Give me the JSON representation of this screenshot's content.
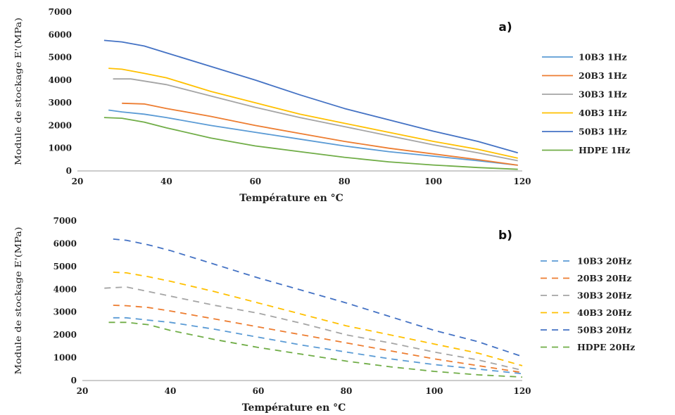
{
  "chart_data": [
    {
      "type": "line",
      "panel_label": "a)",
      "xlabel": "Température en °C",
      "ylabel": "Module de stockage E'(MPa)",
      "xlim": [
        20,
        120
      ],
      "ylim": [
        0,
        7000
      ],
      "xticks": [
        "20",
        "40",
        "60",
        "80",
        "100",
        "120"
      ],
      "yticks": [
        "0",
        "1000",
        "2000",
        "3000",
        "4000",
        "5000",
        "6000",
        "7000"
      ],
      "grid": false,
      "legend_position": "right",
      "line_style": "solid",
      "series": [
        {
          "name": "10B3 1Hz",
          "color": "#5b9bd5",
          "x": [
            27,
            30,
            35,
            40,
            50,
            60,
            70,
            80,
            90,
            100,
            110,
            119
          ],
          "y": [
            2680,
            2600,
            2500,
            2350,
            2000,
            1700,
            1400,
            1100,
            850,
            650,
            450,
            250
          ]
        },
        {
          "name": "20B3 1Hz",
          "color": "#ed7d31",
          "x": [
            30,
            35,
            40,
            50,
            60,
            70,
            80,
            90,
            100,
            110,
            119
          ],
          "y": [
            2980,
            2950,
            2750,
            2400,
            2000,
            1650,
            1300,
            1000,
            750,
            500,
            250
          ]
        },
        {
          "name": "30B3 1Hz",
          "color": "#a5a5a5",
          "x": [
            28,
            32,
            40,
            50,
            60,
            70,
            80,
            90,
            100,
            110,
            119
          ],
          "y": [
            4050,
            4050,
            3800,
            3300,
            2800,
            2350,
            1950,
            1550,
            1150,
            800,
            450
          ]
        },
        {
          "name": "40B3 1Hz",
          "color": "#ffc000",
          "x": [
            27,
            30,
            35,
            40,
            50,
            60,
            70,
            80,
            90,
            100,
            110,
            119
          ],
          "y": [
            4520,
            4480,
            4300,
            4100,
            3500,
            3000,
            2500,
            2100,
            1700,
            1300,
            950,
            560
          ]
        },
        {
          "name": "50B3 1Hz",
          "color": "#4472c4",
          "x": [
            26,
            30,
            35,
            40,
            50,
            60,
            70,
            80,
            90,
            100,
            110,
            119
          ],
          "y": [
            5750,
            5680,
            5500,
            5200,
            4600,
            4000,
            3350,
            2750,
            2250,
            1750,
            1300,
            800
          ]
        },
        {
          "name": "HDPE 1Hz",
          "color": "#70ad47",
          "x": [
            26,
            30,
            35,
            40,
            50,
            60,
            70,
            80,
            90,
            100,
            110,
            119
          ],
          "y": [
            2350,
            2320,
            2150,
            1900,
            1450,
            1100,
            850,
            600,
            400,
            260,
            150,
            70
          ]
        }
      ]
    },
    {
      "type": "line",
      "panel_label": "b)",
      "xlabel": "Température en °C",
      "ylabel": "Module de stockage E'(MPa)",
      "xlim": [
        20,
        120
      ],
      "ylim": [
        0,
        7000
      ],
      "xticks": [
        "20",
        "40",
        "60",
        "80",
        "100",
        "120"
      ],
      "yticks": [
        "0",
        "1000",
        "2000",
        "3000",
        "4000",
        "5000",
        "6000",
        "7000"
      ],
      "grid": false,
      "legend_position": "right",
      "line_style": "dashed",
      "series": [
        {
          "name": "10B3 20Hz",
          "color": "#5b9bd5",
          "x": [
            27,
            30,
            35,
            40,
            50,
            60,
            70,
            80,
            90,
            100,
            110,
            120
          ],
          "y": [
            2750,
            2750,
            2650,
            2550,
            2250,
            1900,
            1550,
            1250,
            950,
            700,
            500,
            300
          ]
        },
        {
          "name": "20B3 20Hz",
          "color": "#ed7d31",
          "x": [
            27,
            30,
            35,
            40,
            50,
            60,
            70,
            80,
            90,
            100,
            110,
            120
          ],
          "y": [
            3300,
            3280,
            3200,
            3050,
            2700,
            2350,
            2000,
            1650,
            1300,
            950,
            650,
            350
          ]
        },
        {
          "name": "30B3 20Hz",
          "color": "#a5a5a5",
          "x": [
            25,
            30,
            35,
            40,
            50,
            60,
            70,
            80,
            90,
            100,
            110,
            120
          ],
          "y": [
            4050,
            4100,
            3900,
            3700,
            3300,
            2950,
            2500,
            2000,
            1650,
            1250,
            900,
            450
          ]
        },
        {
          "name": "40B3 20Hz",
          "color": "#ffc000",
          "x": [
            27,
            30,
            35,
            40,
            50,
            60,
            70,
            80,
            90,
            100,
            110,
            120
          ],
          "y": [
            4750,
            4720,
            4550,
            4350,
            3900,
            3400,
            2900,
            2400,
            2000,
            1600,
            1200,
            650
          ]
        },
        {
          "name": "50B3 20Hz",
          "color": "#4472c4",
          "x": [
            27,
            30,
            35,
            40,
            50,
            60,
            70,
            80,
            90,
            100,
            110,
            120
          ],
          "y": [
            6200,
            6150,
            5950,
            5700,
            5100,
            4500,
            3950,
            3400,
            2800,
            2200,
            1700,
            1050
          ]
        },
        {
          "name": "HDPE 20Hz",
          "color": "#70ad47",
          "x": [
            26,
            30,
            35,
            40,
            50,
            60,
            70,
            80,
            90,
            100,
            110,
            120
          ],
          "y": [
            2550,
            2550,
            2450,
            2200,
            1800,
            1450,
            1150,
            850,
            600,
            400,
            250,
            150
          ]
        }
      ]
    }
  ]
}
